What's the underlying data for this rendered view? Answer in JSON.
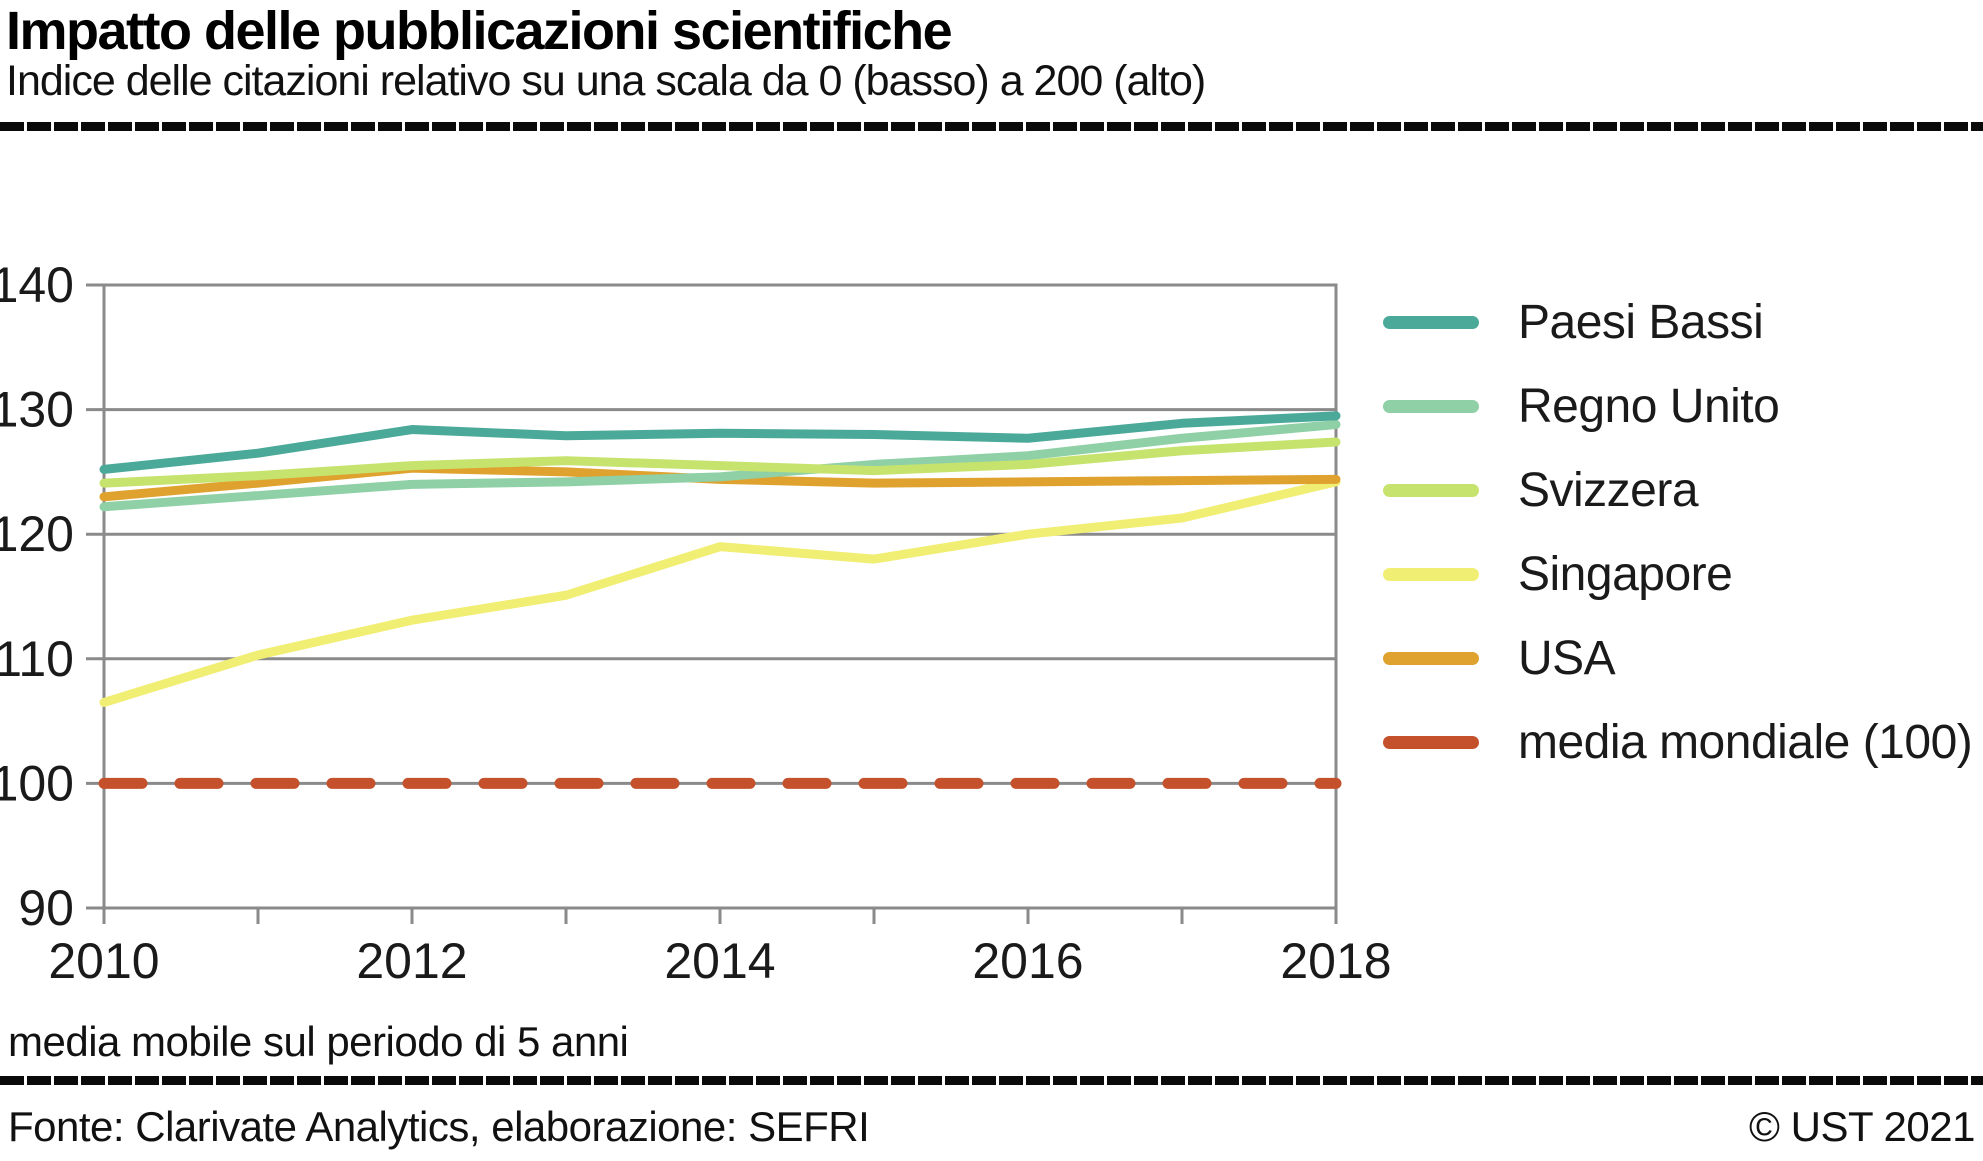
{
  "header": {
    "title": "Impatto delle pubblicazioni scientifiche",
    "subtitle": "Indice delle citazioni relativo su una scala da 0 (basso) a 200 (alto)"
  },
  "footnote": "media mobile sul periodo di 5 anni",
  "footer": {
    "source": "Fonte: Clarivate Analytics, elaborazione: SEFRI",
    "copyright": "© UST 2021"
  },
  "colors": {
    "grid": "#8a8a8a",
    "axis": "#8a8a8a",
    "divider": "#0a0a0a",
    "text": "#1a1a1a"
  },
  "chart_data": {
    "type": "line",
    "x": [
      2010,
      2011,
      2012,
      2013,
      2014,
      2015,
      2016,
      2017,
      2018
    ],
    "series": [
      {
        "name": "Paesi Bassi",
        "color": "#4ba99a",
        "dashed": false,
        "values": [
          125.2,
          126.5,
          128.4,
          127.9,
          128.1,
          128.0,
          127.7,
          128.9,
          129.5
        ]
      },
      {
        "name": "Regno Unito",
        "color": "#8fd0a6",
        "dashed": false,
        "values": [
          122.2,
          123.1,
          124.0,
          124.2,
          124.6,
          125.6,
          126.3,
          127.7,
          128.8
        ]
      },
      {
        "name": "Svizzera",
        "color": "#c6e36e",
        "dashed": false,
        "values": [
          124.1,
          124.7,
          125.5,
          125.9,
          125.5,
          125.1,
          125.6,
          126.7,
          127.4
        ]
      },
      {
        "name": "Singapore",
        "color": "#f1ee74",
        "dashed": false,
        "values": [
          106.5,
          110.3,
          113.1,
          115.1,
          119.0,
          118.0,
          120.0,
          121.3,
          124.2
        ]
      },
      {
        "name": "USA",
        "color": "#dfa22f",
        "dashed": false,
        "values": [
          123.0,
          124.1,
          125.3,
          125.0,
          124.4,
          124.1,
          124.2,
          124.3,
          124.4
        ]
      },
      {
        "name": "media mondiale (100)",
        "color": "#c4512c",
        "dashed": true,
        "values": [
          100,
          100,
          100,
          100,
          100,
          100,
          100,
          100,
          100
        ]
      }
    ],
    "title": "Impatto delle pubblicazioni scientifiche",
    "subtitle": "Indice delle citazioni relativo su una scala da 0 (basso) a 200 (alto)",
    "xlabel": "",
    "ylabel": "",
    "ylim": [
      90,
      140
    ],
    "yticks": [
      90,
      100,
      110,
      120,
      130,
      140
    ],
    "xticks": [
      2010,
      2011,
      2012,
      2013,
      2014,
      2015,
      2016,
      2017,
      2018
    ],
    "xtick_labels": [
      "2010",
      "2012",
      "2014",
      "2016",
      "2018"
    ],
    "grid": true,
    "legend_position": "right"
  }
}
